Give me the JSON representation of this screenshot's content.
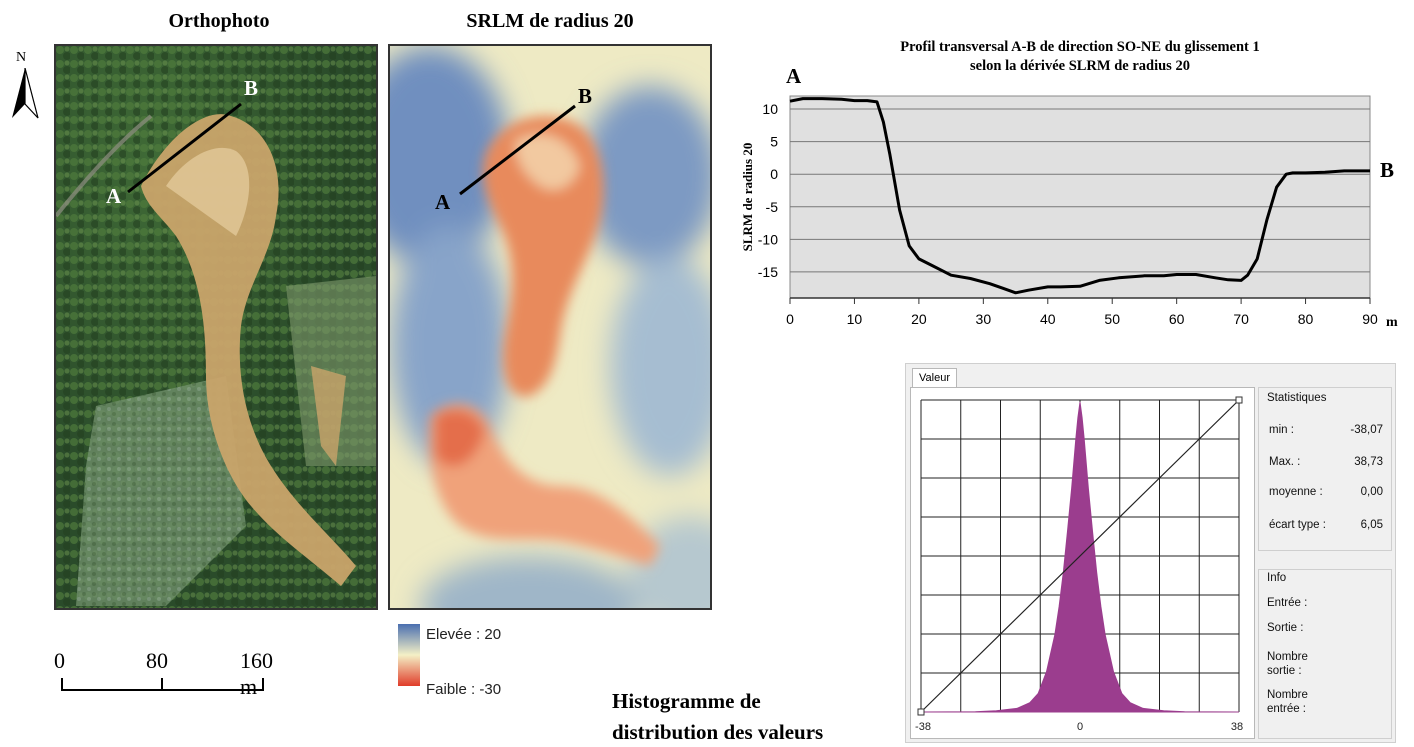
{
  "left_panel": {
    "ortho_title": "Orthophoto",
    "srlm_title": "SRLM de radius 20",
    "north_label": "N",
    "point_a": "A",
    "point_b": "B",
    "scale_labels": [
      "0",
      "80",
      "160 m"
    ],
    "legend": {
      "high_label": "Elevée : 20",
      "low_label": "Faible : -30",
      "colors": [
        "#4a6fb0",
        "#f4f0c6",
        "#e03c2a"
      ]
    }
  },
  "profile": {
    "title_line1": "Profil transversal A-B de direction SO-NE du glissement 1",
    "title_line2": "selon la dérivée SLRM de radius 20",
    "label_a": "A",
    "label_b": "B",
    "chart_data": {
      "type": "line",
      "title": "Profil transversal A-B de direction SO-NE du glissement 1 selon la dérivée SLRM de radius 20",
      "xlabel": "m",
      "ylabel": "SLRM de radius 20",
      "xlim": [
        0,
        90
      ],
      "ylim": [
        -19,
        12
      ],
      "xticks": [
        0,
        10,
        20,
        30,
        40,
        50,
        60,
        70,
        80,
        90
      ],
      "yticks": [
        10,
        5,
        0,
        -5,
        -10,
        -15
      ],
      "grid": "horizontal",
      "series": [
        {
          "x": [
            0,
            2,
            5,
            8,
            10,
            12,
            13.5,
            14.5,
            15.5,
            17,
            18.5,
            20,
            22,
            25,
            28,
            31,
            33,
            35,
            37,
            40,
            42,
            45,
            48,
            51,
            55,
            58,
            60,
            63,
            66,
            68,
            70,
            71,
            72.5,
            74,
            75.5,
            77,
            78,
            80,
            83,
            86,
            89,
            90
          ],
          "y": [
            11.2,
            11.6,
            11.6,
            11.5,
            11.3,
            11.3,
            11.1,
            8,
            3,
            -5.5,
            -11,
            -13,
            -14,
            -15.5,
            -16,
            -16.8,
            -17.5,
            -18.2,
            -17.8,
            -17.3,
            -17.3,
            -17.2,
            -16.3,
            -15.9,
            -15.6,
            -15.6,
            -15.4,
            -15.4,
            -15.9,
            -16.2,
            -16.3,
            -15.5,
            -13,
            -7,
            -2,
            0,
            0.2,
            0.2,
            0.3,
            0.5,
            0.5,
            0.5
          ]
        }
      ]
    }
  },
  "histogram": {
    "tab_label": "Valeur",
    "x_min_label": "-38",
    "x_mid_label": "0",
    "x_max_label": "38",
    "stats_title": "Statistiques",
    "stats": [
      {
        "label": "min :",
        "value": "-38,07"
      },
      {
        "label": "Max. :",
        "value": "38,73"
      },
      {
        "label": "moyenne :",
        "value": "0,00"
      },
      {
        "label": "écart type :",
        "value": "6,05"
      }
    ],
    "info_title": "Info",
    "info": [
      {
        "label": "Entrée :"
      },
      {
        "label": "Sortie :"
      },
      {
        "label": "Nombre sortie :"
      },
      {
        "label": "Nombre entrée :"
      }
    ],
    "caption_line1": "Histogramme de",
    "caption_line2": "distribution des valeurs",
    "fill_color": "#9b3d8e",
    "chart_data": {
      "type": "area",
      "xlim": [
        -38,
        38
      ],
      "x": [
        -38,
        -25,
        -20,
        -15,
        -12,
        -10,
        -8,
        -6,
        -5,
        -4,
        -3,
        -2,
        -1,
        -0.5,
        0,
        0.5,
        1,
        2,
        3,
        4,
        5,
        6,
        8,
        10,
        12,
        15,
        20,
        25,
        38
      ],
      "values": [
        0,
        0.001,
        0.004,
        0.012,
        0.03,
        0.06,
        0.13,
        0.25,
        0.34,
        0.45,
        0.58,
        0.72,
        0.88,
        0.95,
        1.0,
        0.95,
        0.88,
        0.72,
        0.58,
        0.45,
        0.34,
        0.25,
        0.13,
        0.06,
        0.03,
        0.012,
        0.004,
        0.001,
        0
      ]
    }
  }
}
